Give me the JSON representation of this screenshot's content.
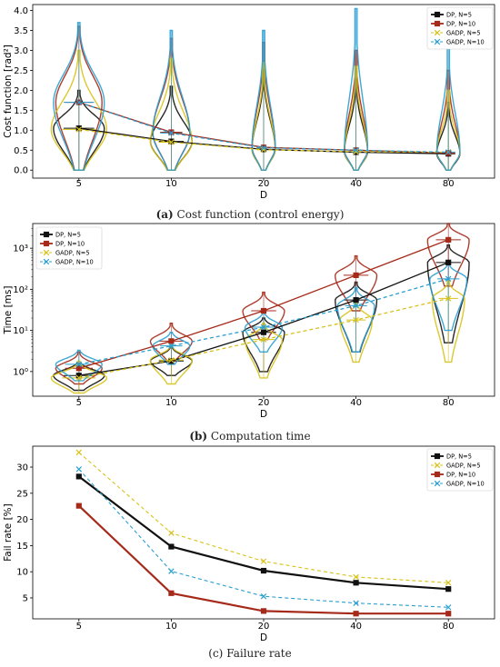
{
  "chart_data": [
    {
      "type": "violin",
      "caption_label": "(a)",
      "caption_text": "Cost function (control energy)",
      "xlabel": "D",
      "ylabel": "Cost function [rad²]",
      "categories": [
        "5",
        "10",
        "20",
        "40",
        "80"
      ],
      "ylim": [
        -0.2,
        4.15
      ],
      "yticks": [
        0.0,
        0.5,
        1.0,
        1.5,
        2.0,
        2.5,
        3.0,
        3.5,
        4.0
      ],
      "ytick_labels": [
        "0.0",
        "0.5",
        "1.0",
        "1.5",
        "2.0",
        "2.5",
        "3.0",
        "3.5",
        "4.0"
      ],
      "log": false,
      "legend_position": "top-right",
      "series": [
        {
          "name": "DP, N=5",
          "color": "#111111",
          "dash": false,
          "marker": "square",
          "values": [
            1.05,
            0.72,
            0.52,
            0.45,
            0.41
          ],
          "min": [
            0.0,
            0.0,
            0.0,
            0.0,
            0.0
          ],
          "max": [
            2.0,
            2.1,
            2.5,
            2.3,
            1.7
          ],
          "spread": [
            0.11,
            0.09,
            0.05,
            0.05,
            0.05
          ]
        },
        {
          "name": "DP, N=10",
          "color": "#a52a1a",
          "dash": false,
          "marker": "square",
          "values": [
            1.7,
            0.95,
            0.57,
            0.5,
            0.43
          ],
          "min": [
            0.0,
            0.0,
            0.0,
            0.0,
            0.0
          ],
          "max": [
            3.6,
            3.3,
            3.2,
            3.0,
            2.5
          ],
          "spread": [
            0.1,
            0.08,
            0.05,
            0.05,
            0.05
          ]
        },
        {
          "name": "GADP, N=5",
          "color": "#d8c21a",
          "dash": true,
          "marker": "x",
          "values": [
            1.02,
            0.7,
            0.51,
            0.46,
            0.45
          ],
          "min": [
            0.0,
            0.0,
            0.0,
            0.0,
            0.0
          ],
          "max": [
            3.0,
            2.8,
            2.7,
            2.6,
            2.0
          ],
          "spread": [
            0.12,
            0.09,
            0.05,
            0.05,
            0.05
          ]
        },
        {
          "name": "GADP, N=10",
          "color": "#2a9fd0",
          "dash": true,
          "marker": "x",
          "values": [
            1.7,
            0.93,
            0.56,
            0.5,
            0.45
          ],
          "min": [
            0.0,
            0.0,
            0.0,
            0.0,
            0.0
          ],
          "max": [
            3.7,
            3.5,
            3.5,
            4.05,
            3.2
          ],
          "spread": [
            0.11,
            0.08,
            0.05,
            0.05,
            0.05
          ]
        }
      ]
    },
    {
      "type": "violin",
      "caption_label": "(b)",
      "caption_text": "Computation time",
      "xlabel": "D",
      "ylabel": "Time [ms]",
      "categories": [
        "5",
        "10",
        "20",
        "40",
        "80"
      ],
      "ylim": [
        -0.6,
        3.6
      ],
      "yticks": [
        0,
        1,
        2,
        3
      ],
      "ytick_labels": [
        "10⁰",
        "10¹",
        "10²",
        "10³"
      ],
      "log": true,
      "legend_position": "top-left",
      "series": [
        {
          "name": "DP, N=5",
          "color": "#111111",
          "dash": false,
          "marker": "square",
          "values": [
            0.8,
            1.8,
            9,
            55,
            450
          ],
          "min": [
            0.35,
            0.8,
            1.0,
            3.0,
            5.0
          ],
          "max": [
            1.6,
            4.0,
            20,
            150,
            1200
          ],
          "spread": [
            0.11,
            0.09,
            0.09,
            0.09,
            0.09
          ]
        },
        {
          "name": "DP, N=10",
          "color": "#a52a1a",
          "dash": false,
          "marker": "square",
          "values": [
            1.2,
            5.5,
            30,
            220,
            1600
          ],
          "min": [
            0.5,
            1.8,
            6.0,
            30,
            120
          ],
          "max": [
            3.0,
            15,
            85,
            650,
            4000
          ],
          "spread": [
            0.1,
            0.09,
            0.09,
            0.09,
            0.09
          ]
        },
        {
          "name": "GADP, N=5",
          "color": "#d8c21a",
          "dash": true,
          "marker": "x",
          "values": [
            0.7,
            1.9,
            6,
            18,
            60
          ],
          "min": [
            0.3,
            0.5,
            0.7,
            1.7,
            1.7
          ],
          "max": [
            1.8,
            4.5,
            15,
            50,
            160
          ],
          "spread": [
            0.12,
            0.09,
            0.08,
            0.07,
            0.07
          ]
        },
        {
          "name": "GADP, N=10",
          "color": "#2a9fd0",
          "dash": true,
          "marker": "x",
          "values": [
            1.5,
            4.2,
            12,
            40,
            180
          ],
          "min": [
            0.6,
            1.5,
            3.0,
            3.0,
            10
          ],
          "max": [
            3.3,
            9.0,
            30,
            110,
            450
          ],
          "spread": [
            0.1,
            0.08,
            0.08,
            0.08,
            0.08
          ]
        }
      ]
    },
    {
      "type": "line",
      "caption_label": "(c)",
      "caption_text": "Failure rate",
      "xlabel": "D",
      "ylabel": "Fail rate [%]",
      "categories": [
        "5",
        "10",
        "20",
        "40",
        "80"
      ],
      "ylim": [
        1.0,
        34.0
      ],
      "yticks": [
        5,
        10,
        15,
        20,
        25,
        30
      ],
      "ytick_labels": [
        "5",
        "10",
        "15",
        "20",
        "25",
        "30"
      ],
      "log": false,
      "legend_position": "top-right",
      "series": [
        {
          "name": "DP, N=5",
          "color": "#111111",
          "dash": false,
          "marker": "square",
          "width": 2.2,
          "values": [
            28.2,
            14.8,
            10.2,
            7.9,
            6.7
          ]
        },
        {
          "name": "GADP, N=5",
          "color": "#d8c21a",
          "dash": true,
          "marker": "x",
          "width": 1.1,
          "values": [
            32.8,
            17.4,
            12.0,
            9.0,
            7.9
          ]
        },
        {
          "name": "DP, N=10",
          "color": "#a52a1a",
          "dash": false,
          "marker": "square",
          "width": 2.2,
          "values": [
            22.6,
            5.9,
            2.5,
            2.0,
            2.0
          ]
        },
        {
          "name": "GADP, N=10",
          "color": "#2a9fd0",
          "dash": true,
          "marker": "x",
          "width": 1.1,
          "values": [
            29.6,
            10.1,
            5.3,
            4.0,
            3.2
          ]
        }
      ]
    }
  ]
}
